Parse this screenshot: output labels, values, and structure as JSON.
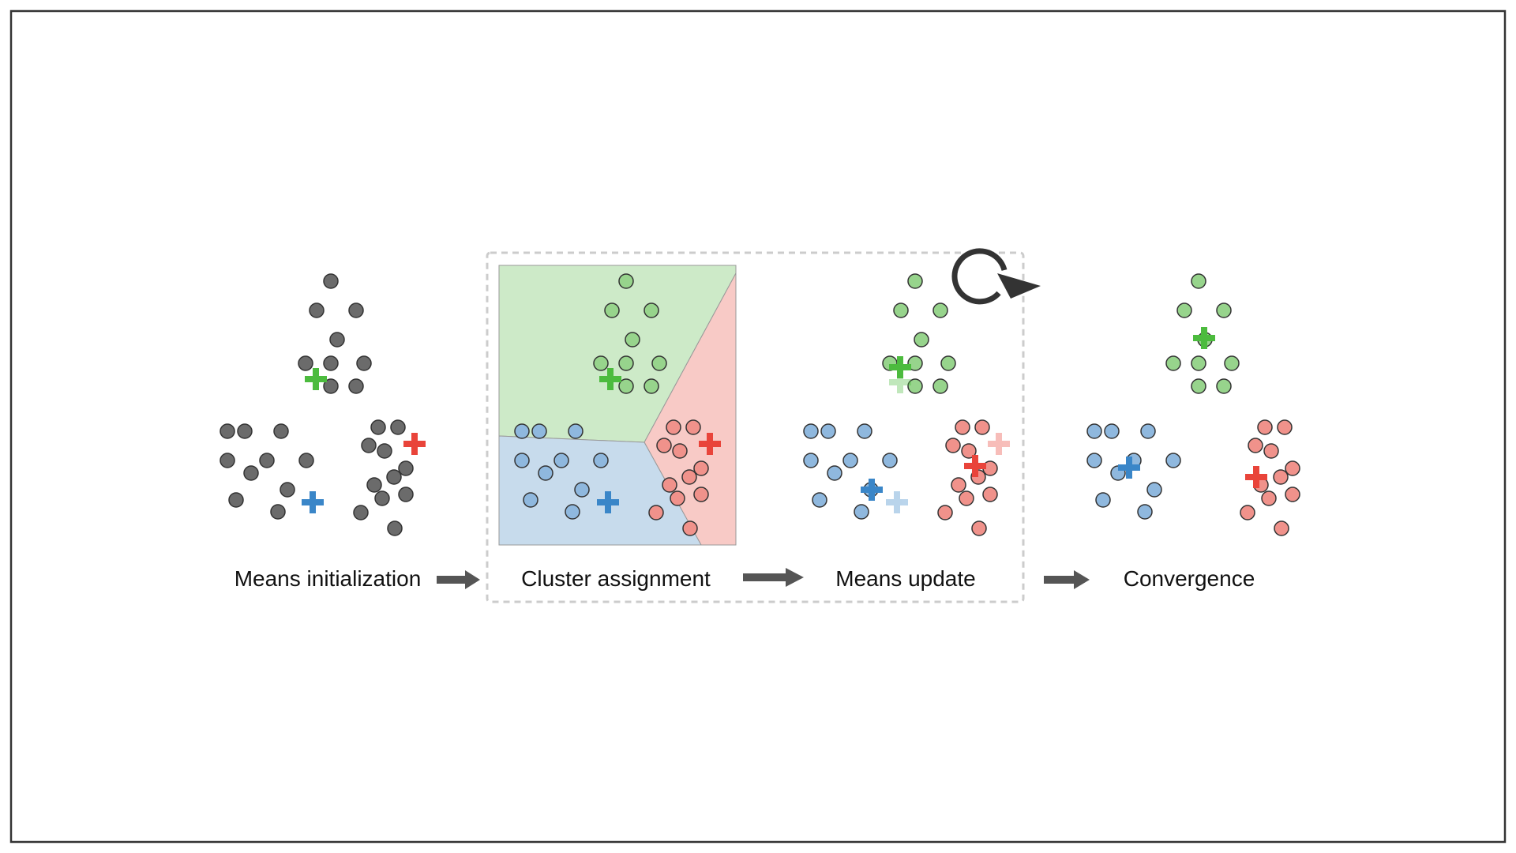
{
  "colors": {
    "gray": "#6b6b6b",
    "green": "#4cbb3e",
    "blue": "#3a86c8",
    "red": "#e9443a",
    "green_light": "#97d48c",
    "blue_light": "#8fb8de",
    "red_light": "#f0928b",
    "green_region": "#cdeac8",
    "blue_region": "#c7dbec",
    "red_region": "#f8cac6",
    "arrow": "#555555",
    "border": "#333333",
    "dashed": "#cccccc"
  },
  "stages": [
    {
      "id": "init",
      "label": "Means initialization"
    },
    {
      "id": "assign",
      "label": "Cluster assignment"
    },
    {
      "id": "update",
      "label": "Means update"
    },
    {
      "id": "converge",
      "label": "Convergence"
    }
  ],
  "icons": {
    "loop": "loop-arrow-icon",
    "flow": "right-arrow-icon",
    "centroid": "plus-icon"
  }
}
